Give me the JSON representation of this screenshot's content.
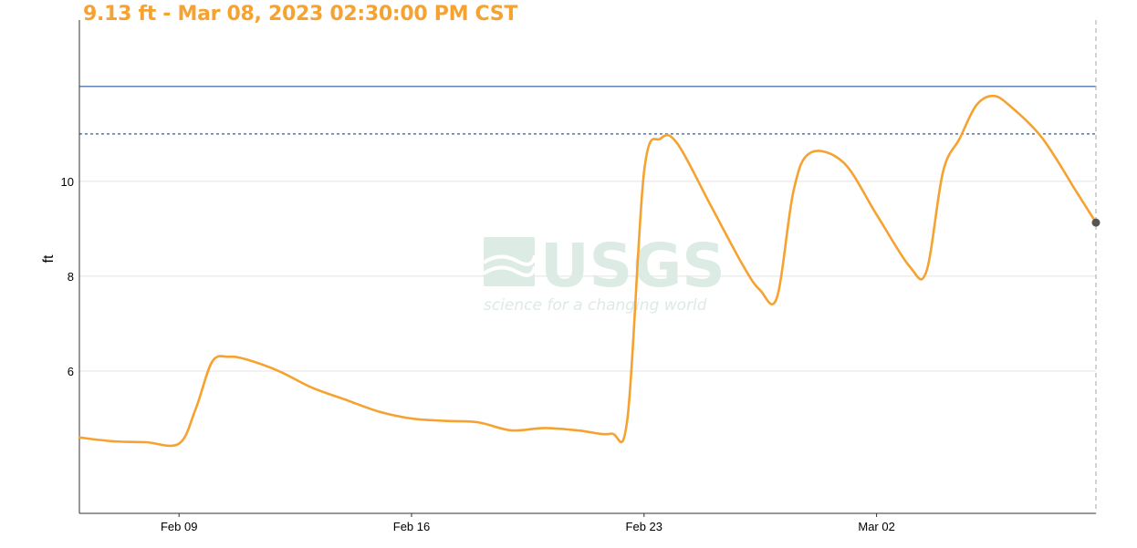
{
  "header": {
    "readout": "9.13 ft - Mar 08, 2023 02:30:00 PM CST",
    "readout_color": "#f5a231"
  },
  "watermark": {
    "name": "USGS",
    "tagline": "science for a changing world",
    "color": "#dcebe3"
  },
  "chart_data": {
    "type": "line",
    "title": "",
    "xlabel": "",
    "ylabel": "ft",
    "xlim": [
      "2023-02-06",
      "2023-03-08T14:30"
    ],
    "ylim": [
      3,
      13.4
    ],
    "yticks": [
      6,
      8,
      10
    ],
    "ytick_labels": [
      "6",
      "8",
      "10"
    ],
    "xticks": [
      "2023-02-09",
      "2023-02-16",
      "2023-02-23",
      "2023-03-02"
    ],
    "xtick_labels": [
      "Feb 09",
      "Feb 16",
      "Feb 23",
      "Mar 02"
    ],
    "grid": true,
    "reference_lines": [
      {
        "y": 12.0,
        "style": "solid",
        "color": "#2d5d96"
      },
      {
        "y": 11.0,
        "style": "dashed",
        "color": "#2d5d96"
      }
    ],
    "cursor": {
      "x": "2023-03-08T14:30",
      "y": 9.13
    },
    "series": [
      {
        "color": "#f5a231",
        "x": [
          "2023-02-06",
          "2023-02-07",
          "2023-02-08",
          "2023-02-09",
          "2023-02-09T12:00",
          "2023-02-10",
          "2023-02-10T12:00",
          "2023-02-11",
          "2023-02-12",
          "2023-02-13",
          "2023-02-14",
          "2023-02-15",
          "2023-02-16",
          "2023-02-17",
          "2023-02-18",
          "2023-02-19",
          "2023-02-20",
          "2023-02-21",
          "2023-02-22",
          "2023-02-22T12:00",
          "2023-02-23",
          "2023-02-23T12:00",
          "2023-02-24",
          "2023-02-25",
          "2023-02-26",
          "2023-02-26T12:00",
          "2023-02-27",
          "2023-02-27T12:00",
          "2023-02-28",
          "2023-03-01",
          "2023-03-02",
          "2023-03-03",
          "2023-03-03T12:00",
          "2023-03-04",
          "2023-03-04T12:00",
          "2023-03-05",
          "2023-03-05T12:00",
          "2023-03-06",
          "2023-03-07",
          "2023-03-08",
          "2023-03-08T14:30"
        ],
        "y": [
          4.6,
          4.52,
          4.5,
          4.47,
          5.2,
          6.2,
          6.3,
          6.25,
          6.0,
          5.65,
          5.4,
          5.15,
          5.0,
          4.95,
          4.92,
          4.75,
          4.8,
          4.75,
          4.68,
          5.0,
          10.2,
          10.9,
          10.8,
          9.5,
          8.2,
          7.7,
          7.55,
          9.8,
          10.6,
          10.4,
          9.3,
          8.2,
          8.1,
          10.2,
          10.9,
          11.6,
          11.8,
          11.6,
          10.9,
          9.8,
          9.13
        ]
      }
    ]
  }
}
